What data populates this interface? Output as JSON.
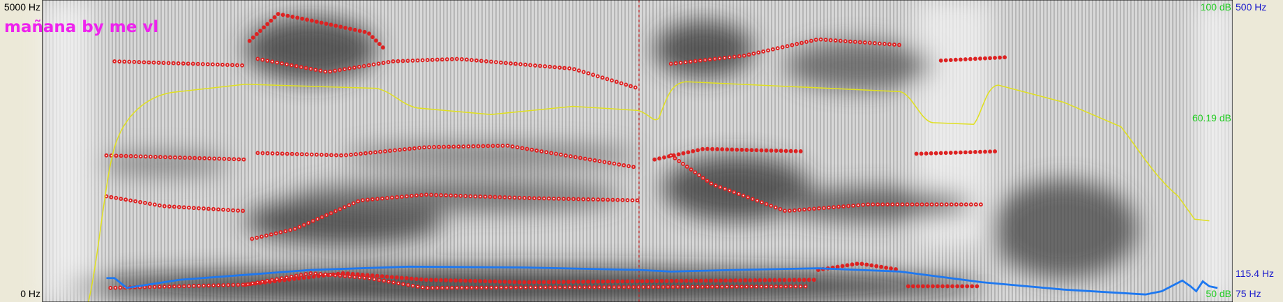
{
  "title": "mañana by me vl",
  "frequency_axis": {
    "top": "5000 Hz",
    "bottom": "0 Hz"
  },
  "intensity_axis": {
    "top": "100 dB",
    "cursor": "60.19 dB",
    "bottom": "50 dB"
  },
  "pitch_axis": {
    "top": "500 Hz",
    "cursor": "115.4 Hz",
    "bottom": "75 Hz"
  }
}
